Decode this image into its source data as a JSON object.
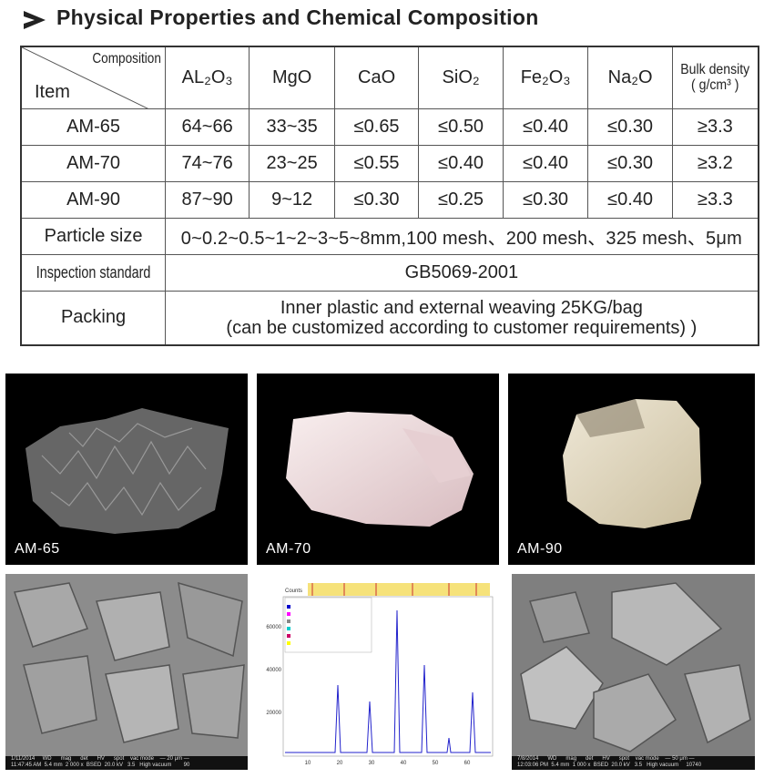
{
  "header": {
    "title": "Physical Properties and Chemical Composition"
  },
  "table": {
    "corner": {
      "top": "Composition",
      "bottom": "Item"
    },
    "columns": [
      "AL₂O₃",
      "MgO",
      "CaO",
      "SiO₂",
      "Fe₂O₃",
      "Na₂O"
    ],
    "bulk_density": {
      "line1": "Bulk density",
      "line2": "( g/cm³ )"
    },
    "rows": [
      [
        "AM-65",
        "64~66",
        "33~35",
        "≤0.65",
        "≤0.50",
        "≤0.40",
        "≤0.30",
        "≥3.3"
      ],
      [
        "AM-70",
        "74~76",
        "23~25",
        "≤0.55",
        "≤0.40",
        "≤0.40",
        "≤0.30",
        "≥3.2"
      ],
      [
        "AM-90",
        "87~90",
        "9~12",
        "≤0.30",
        "≤0.25",
        "≤0.30",
        "≤0.40",
        "≥3.3"
      ]
    ],
    "particle_size": {
      "label": "Particle size",
      "value": "0~0.2~0.5~1~2~3~5~8mm,100 mesh、200 mesh、325 mesh、5μm"
    },
    "inspection": {
      "label": "Inspection standard",
      "value": "GB5069-2001"
    },
    "packing": {
      "label": "Packing",
      "line1": "Inner plastic and external weaving 25KG/bag",
      "line2": "(can be customized according to customer requirements) )"
    }
  },
  "samples": [
    {
      "label": "AM-65"
    },
    {
      "label": "AM-70"
    },
    {
      "label": "AM-90"
    }
  ],
  "sem_left": {
    "line1": "1/11/2014     WD      mag      det      HV      spot    vac mode    — 20 μm —",
    "line2": "11:47:45 AM  5.4 mm  2 000 x  BSED  20.0 kV   3.5   High vacuum        90"
  },
  "sem_right": {
    "line1": "7/8/2014      WD      mag      det      HV      spot    vac mode    — 50 μm —",
    "line2": "12:03:06 PM  5.4 mm  1 000 x  BSED  20.0 kV   3.5   High vacuum     10740"
  },
  "xrd": {
    "y_title": "Counts",
    "y_labels": [
      "60000",
      "40000",
      "20000"
    ],
    "x_labels": [
      "10",
      "20",
      "30",
      "40",
      "50",
      "60"
    ]
  }
}
